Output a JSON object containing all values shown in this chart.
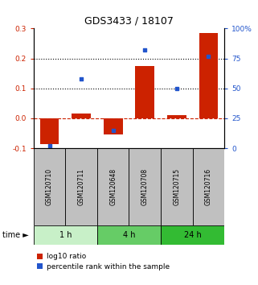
{
  "title": "GDS3433 / 18107",
  "samples": [
    "GSM120710",
    "GSM120711",
    "GSM120648",
    "GSM120708",
    "GSM120715",
    "GSM120716"
  ],
  "log10_ratio": [
    -0.085,
    0.015,
    -0.055,
    0.175,
    0.01,
    0.285
  ],
  "percentile_rank": [
    2,
    58,
    15,
    82,
    50,
    77
  ],
  "time_groups": [
    {
      "label": "1 h",
      "samples": [
        0,
        1
      ],
      "color": "#c8f0c8"
    },
    {
      "label": "4 h",
      "samples": [
        2,
        3
      ],
      "color": "#66cc66"
    },
    {
      "label": "24 h",
      "samples": [
        4,
        5
      ],
      "color": "#33bb33"
    }
  ],
  "ylim_left": [
    -0.1,
    0.3
  ],
  "ylim_right": [
    0,
    100
  ],
  "yticks_left": [
    -0.1,
    0.0,
    0.1,
    0.2,
    0.3
  ],
  "yticks_right": [
    0,
    25,
    50,
    75,
    100
  ],
  "dotted_lines": [
    0.1,
    0.2
  ],
  "bar_color": "#cc2200",
  "scatter_color": "#2255cc",
  "bar_width": 0.6,
  "background_color": "#ffffff",
  "label_log10": "log10 ratio",
  "label_percentile": "percentile rank within the sample",
  "time_label": "time",
  "sample_bg_color": "#c0c0c0",
  "zero_line_color": "#cc2200"
}
